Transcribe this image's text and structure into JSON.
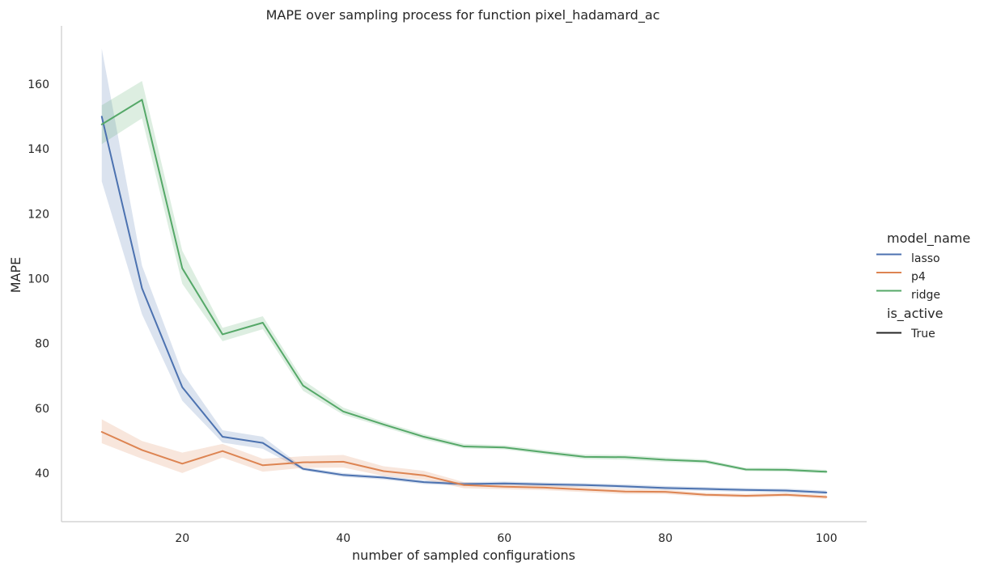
{
  "chart_data": {
    "type": "line",
    "title": "MAPE over sampling process for function pixel_hadamard_ac",
    "xlabel": "number of sampled configurations",
    "ylabel": "MAPE",
    "xlim": [
      5,
      105
    ],
    "ylim": [
      25,
      178
    ],
    "xticks": [
      20,
      40,
      60,
      80,
      100
    ],
    "yticks": [
      40,
      60,
      80,
      100,
      120,
      140,
      160
    ],
    "grid": false,
    "legend": {
      "placement": "right",
      "hue_title": "model_name",
      "style_title": "is_active",
      "style_entries": [
        "True"
      ]
    },
    "x": [
      10,
      15,
      20,
      25,
      30,
      35,
      40,
      45,
      50,
      55,
      60,
      65,
      70,
      75,
      80,
      85,
      90,
      95,
      100
    ],
    "series": [
      {
        "name": "lasso",
        "color": "#4c72b0",
        "values": [
          150,
          97,
          66.5,
          51.2,
          49.3,
          41.3,
          39.4,
          38.6,
          37.2,
          36.6,
          36.8,
          36.5,
          36.3,
          35.9,
          35.4,
          35.1,
          34.8,
          34.6,
          34.0
        ],
        "lower": [
          130,
          89,
          62.3,
          49.4,
          47.5,
          40.8,
          38.8,
          38.0,
          36.6,
          36.0,
          36.2,
          35.9,
          35.7,
          35.3,
          34.8,
          34.5,
          34.2,
          34.0,
          33.4
        ],
        "upper": [
          171,
          104,
          71.0,
          53.2,
          51.2,
          41.8,
          40.0,
          39.2,
          37.8,
          37.2,
          37.4,
          37.1,
          36.9,
          36.5,
          36.0,
          35.7,
          35.4,
          35.2,
          34.6
        ]
      },
      {
        "name": "p4",
        "color": "#dd8452",
        "values": [
          52.7,
          47.1,
          42.9,
          46.8,
          42.4,
          43.3,
          43.5,
          40.6,
          39.3,
          36.3,
          35.8,
          35.5,
          34.9,
          34.3,
          34.2,
          33.3,
          33.0,
          33.3,
          32.6
        ],
        "lower": [
          49.2,
          44.4,
          40.0,
          44.8,
          40.4,
          41.6,
          41.7,
          39.1,
          38.0,
          35.3,
          35.0,
          34.7,
          34.1,
          33.5,
          33.5,
          32.7,
          32.4,
          32.7,
          32.0
        ],
        "upper": [
          56.6,
          49.9,
          46.3,
          49.0,
          44.4,
          45.2,
          45.6,
          42.1,
          40.7,
          37.2,
          36.6,
          36.3,
          35.7,
          35.1,
          34.9,
          33.9,
          33.6,
          33.9,
          33.2
        ]
      },
      {
        "name": "ridge",
        "color": "#55a868",
        "values": [
          147.6,
          155.2,
          103.2,
          82.8,
          86.4,
          67.0,
          59.0,
          55.0,
          51.2,
          48.2,
          47.9,
          46.4,
          45.0,
          44.9,
          44.1,
          43.6,
          41.1,
          41.0,
          40.4
        ],
        "lower": [
          141.5,
          149.5,
          98.4,
          80.7,
          84.4,
          65.4,
          58.0,
          54.2,
          50.4,
          47.6,
          47.3,
          45.7,
          44.3,
          44.1,
          43.4,
          43.0,
          40.6,
          40.4,
          39.9
        ],
        "upper": [
          153.5,
          161.0,
          108.6,
          84.8,
          88.4,
          68.7,
          60.2,
          55.8,
          52.0,
          49.0,
          48.6,
          47.1,
          45.7,
          45.6,
          44.8,
          44.2,
          41.6,
          41.6,
          41.0
        ]
      }
    ]
  }
}
